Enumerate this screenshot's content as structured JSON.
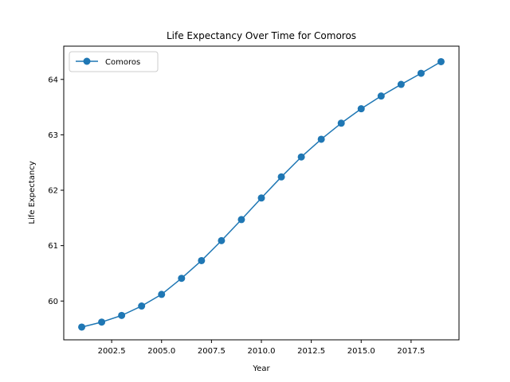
{
  "chart_data": {
    "type": "line",
    "title": "Life Expectancy Over Time for Comoros",
    "xlabel": "Year",
    "ylabel": "Life Expectancy",
    "xlim": [
      2000.1,
      2019.9
    ],
    "ylim": [
      59.3,
      64.6
    ],
    "xticks": [
      2002.5,
      2005.0,
      2007.5,
      2010.0,
      2012.5,
      2015.0,
      2017.5
    ],
    "xtick_labels": [
      "2002.5",
      "2005.0",
      "2007.5",
      "2010.0",
      "2012.5",
      "2015.0",
      "2017.5"
    ],
    "yticks": [
      60,
      61,
      62,
      63,
      64
    ],
    "ytick_labels": [
      "60",
      "61",
      "62",
      "63",
      "64"
    ],
    "grid": false,
    "legend_position": "upper left",
    "series": [
      {
        "name": "Comoros",
        "color": "#1f77b4",
        "marker": "circle",
        "x": [
          2001,
          2002,
          2003,
          2004,
          2005,
          2006,
          2007,
          2008,
          2009,
          2010,
          2011,
          2012,
          2013,
          2014,
          2015,
          2016,
          2017,
          2018,
          2019
        ],
        "y": [
          59.53,
          59.62,
          59.74,
          59.91,
          60.12,
          60.41,
          60.73,
          61.09,
          61.47,
          61.86,
          62.24,
          62.6,
          62.92,
          63.21,
          63.47,
          63.7,
          63.91,
          64.11,
          64.32
        ]
      }
    ]
  }
}
